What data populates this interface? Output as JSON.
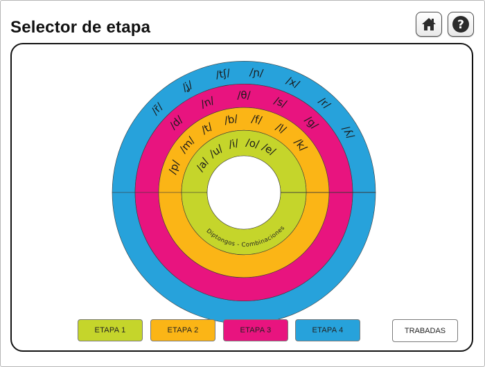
{
  "header": {
    "title": "Selector de etapa"
  },
  "toolbar": {
    "home_icon": "home-icon",
    "help_icon": "question-icon"
  },
  "spiral": {
    "center_label": "Diptongos - Combinaciones",
    "rings": [
      {
        "name": "etapa-1",
        "color": "#c5d52b",
        "phonemes": [
          "/a/",
          "/u/",
          "/i/",
          "/o/",
          "/e/"
        ]
      },
      {
        "name": "etapa-2",
        "color": "#fbb516",
        "phonemes": [
          "/p/",
          "/m/",
          "/t/",
          "/b/",
          "/f/",
          "/l/",
          "/k/"
        ]
      },
      {
        "name": "etapa-3",
        "color": "#e8147f",
        "phonemes": [
          "/d/",
          "/n/",
          "/θ/",
          "/s/",
          "/g/"
        ]
      },
      {
        "name": "etapa-4",
        "color": "#27a2db",
        "phonemes": [
          "/r̄/",
          "/ʝ/",
          "/tʃ/",
          "/ɲ/",
          "/x/",
          "/r/",
          "/ʎ/"
        ]
      }
    ]
  },
  "stages": [
    {
      "label": "ETAPA 1",
      "color": "#c5d52b"
    },
    {
      "label": "ETAPA 2",
      "color": "#fbb516"
    },
    {
      "label": "ETAPA 3",
      "color": "#e8147f"
    },
    {
      "label": "ETAPA 4",
      "color": "#27a2db"
    }
  ],
  "trabadas": {
    "label": "TRABADAS"
  }
}
